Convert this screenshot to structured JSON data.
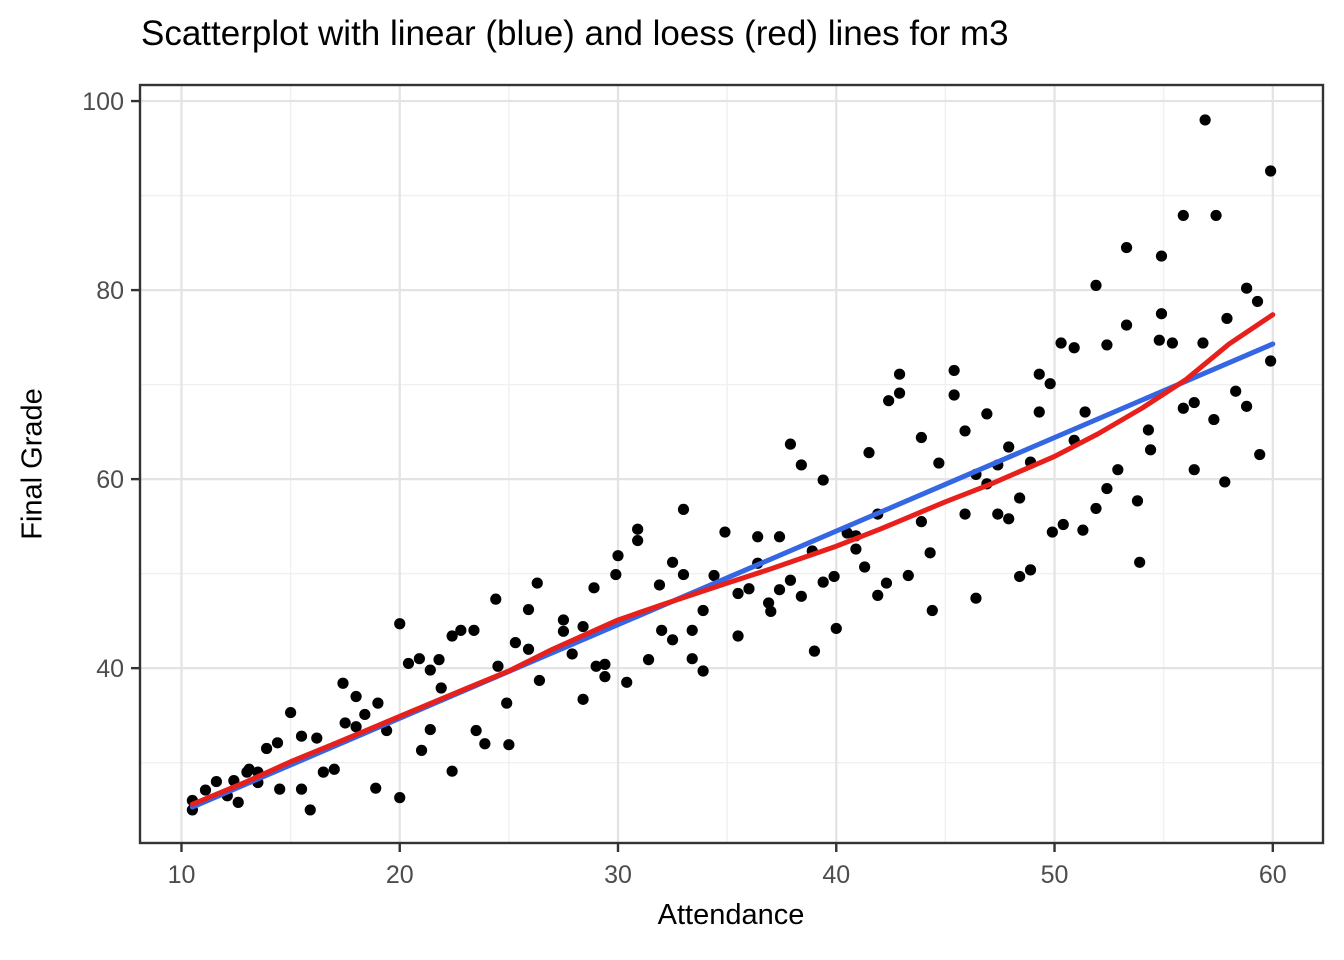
{
  "page": {
    "background": "#ffffff"
  },
  "chart_data": {
    "type": "scatter",
    "title": "Scatterplot with linear (blue) and loess (red) lines for m3",
    "xlabel": "Attendance",
    "ylabel": "Final Grade",
    "xlim": [
      8.1,
      62.3
    ],
    "ylim": [
      21.5,
      101.7
    ],
    "x_major_ticks": [
      10,
      20,
      30,
      40,
      50,
      60
    ],
    "x_minor_ticks": [
      15,
      25,
      35,
      45,
      55
    ],
    "y_major_ticks": [
      40,
      60,
      80,
      100
    ],
    "y_minor_ticks": [
      30,
      50,
      70,
      90
    ],
    "grid": "on",
    "legend": "none",
    "theme": {
      "panel_background": "#ffffff",
      "panel_border": "#333333",
      "grid_major": "#e3e3e3",
      "grid_minor": "#f0f0f0",
      "tick_color": "#333333",
      "tick_label_color": "#4d4d4d",
      "point_color": "#000000"
    },
    "points": [
      [
        10.5,
        26.0
      ],
      [
        10.5,
        25.0
      ],
      [
        11.1,
        27.1
      ],
      [
        11.6,
        28.0
      ],
      [
        12.1,
        26.5
      ],
      [
        12.6,
        25.8
      ],
      [
        12.4,
        28.1
      ],
      [
        13.0,
        29.0
      ],
      [
        13.1,
        29.3
      ],
      [
        13.5,
        29.0
      ],
      [
        13.5,
        27.9
      ],
      [
        13.9,
        31.5
      ],
      [
        14.4,
        32.1
      ],
      [
        14.5,
        27.2
      ],
      [
        15.0,
        35.3
      ],
      [
        15.5,
        32.8
      ],
      [
        15.5,
        27.2
      ],
      [
        15.9,
        25.0
      ],
      [
        16.2,
        32.6
      ],
      [
        16.5,
        29.0
      ],
      [
        17.0,
        29.3
      ],
      [
        17.4,
        38.4
      ],
      [
        18.0,
        37.0
      ],
      [
        17.5,
        34.2
      ],
      [
        18.0,
        33.8
      ],
      [
        18.4,
        35.1
      ],
      [
        19.0,
        36.3
      ],
      [
        18.9,
        27.3
      ],
      [
        19.4,
        33.4
      ],
      [
        20.0,
        44.7
      ],
      [
        20.0,
        26.3
      ],
      [
        20.4,
        40.5
      ],
      [
        20.9,
        41.0
      ],
      [
        21.0,
        31.3
      ],
      [
        21.4,
        39.8
      ],
      [
        21.4,
        33.5
      ],
      [
        21.8,
        40.9
      ],
      [
        21.9,
        37.9
      ],
      [
        22.4,
        43.4
      ],
      [
        22.4,
        29.1
      ],
      [
        22.8,
        44.0
      ],
      [
        23.4,
        44.0
      ],
      [
        23.5,
        33.4
      ],
      [
        23.9,
        32.0
      ],
      [
        24.4,
        47.3
      ],
      [
        24.5,
        40.2
      ],
      [
        24.9,
        36.3
      ],
      [
        25.0,
        31.9
      ],
      [
        25.3,
        42.7
      ],
      [
        25.9,
        46.2
      ],
      [
        25.9,
        42.0
      ],
      [
        26.3,
        49.0
      ],
      [
        26.4,
        38.7
      ],
      [
        27.5,
        45.1
      ],
      [
        27.5,
        43.9
      ],
      [
        27.9,
        41.5
      ],
      [
        28.4,
        44.4
      ],
      [
        28.4,
        36.7
      ],
      [
        28.9,
        48.5
      ],
      [
        29.0,
        40.2
      ],
      [
        29.4,
        40.4
      ],
      [
        29.4,
        39.1
      ],
      [
        29.9,
        49.9
      ],
      [
        30.4,
        38.5
      ],
      [
        31.4,
        40.9
      ],
      [
        31.9,
        48.8
      ],
      [
        32.0,
        44.0
      ],
      [
        32.5,
        43.0
      ],
      [
        33.0,
        49.9
      ],
      [
        33.4,
        44.0
      ],
      [
        33.4,
        41.0
      ],
      [
        33.9,
        46.1
      ],
      [
        33.9,
        39.7
      ],
      [
        34.4,
        49.8
      ],
      [
        35.5,
        47.9
      ],
      [
        35.5,
        43.4
      ],
      [
        36.0,
        48.4
      ],
      [
        36.9,
        46.9
      ],
      [
        37.0,
        46.0
      ],
      [
        37.4,
        48.3
      ],
      [
        37.9,
        49.3
      ],
      [
        38.4,
        47.6
      ],
      [
        39.0,
        41.8
      ],
      [
        39.4,
        49.1
      ],
      [
        39.9,
        49.7
      ],
      [
        40.0,
        44.2
      ],
      [
        41.3,
        50.7
      ],
      [
        41.9,
        47.7
      ],
      [
        42.3,
        49.0
      ],
      [
        43.3,
        49.8
      ],
      [
        44.4,
        46.1
      ],
      [
        30.0,
        51.9
      ],
      [
        30.9,
        54.7
      ],
      [
        30.9,
        53.5
      ],
      [
        32.5,
        51.2
      ],
      [
        33.0,
        56.8
      ],
      [
        34.9,
        54.4
      ],
      [
        36.4,
        53.9
      ],
      [
        36.4,
        51.1
      ],
      [
        37.4,
        53.9
      ],
      [
        37.9,
        63.7
      ],
      [
        38.4,
        61.5
      ],
      [
        39.4,
        59.9
      ],
      [
        38.9,
        52.4
      ],
      [
        40.5,
        54.3
      ],
      [
        40.9,
        54.0
      ],
      [
        40.9,
        52.6
      ],
      [
        41.5,
        62.8
      ],
      [
        41.9,
        56.3
      ],
      [
        42.4,
        68.3
      ],
      [
        42.9,
        69.1
      ],
      [
        42.9,
        71.1
      ],
      [
        43.9,
        64.4
      ],
      [
        43.9,
        55.5
      ],
      [
        44.3,
        52.2
      ],
      [
        44.7,
        61.7
      ],
      [
        46.4,
        47.4
      ],
      [
        48.4,
        49.7
      ],
      [
        48.9,
        50.4
      ],
      [
        53.9,
        51.2
      ],
      [
        45.4,
        71.5
      ],
      [
        45.4,
        68.9
      ],
      [
        45.9,
        65.1
      ],
      [
        46.9,
        66.9
      ],
      [
        46.4,
        60.5
      ],
      [
        46.9,
        59.5
      ],
      [
        47.4,
        61.5
      ],
      [
        47.9,
        63.4
      ],
      [
        48.4,
        58.0
      ],
      [
        48.9,
        61.8
      ],
      [
        49.3,
        71.1
      ],
      [
        49.8,
        70.1
      ],
      [
        49.3,
        67.1
      ],
      [
        45.9,
        56.3
      ],
      [
        47.4,
        56.3
      ],
      [
        47.9,
        55.8
      ],
      [
        49.9,
        54.4
      ],
      [
        50.4,
        55.2
      ],
      [
        51.3,
        54.6
      ],
      [
        50.3,
        74.4
      ],
      [
        50.9,
        73.9
      ],
      [
        52.4,
        74.2
      ],
      [
        51.4,
        67.1
      ],
      [
        50.9,
        64.1
      ],
      [
        51.9,
        56.9
      ],
      [
        52.4,
        59.0
      ],
      [
        52.9,
        61.0
      ],
      [
        53.8,
        57.7
      ],
      [
        54.3,
        65.2
      ],
      [
        54.4,
        63.1
      ],
      [
        54.8,
        74.7
      ],
      [
        55.4,
        74.4
      ],
      [
        55.9,
        67.5
      ],
      [
        56.4,
        68.1
      ],
      [
        56.8,
        74.4
      ],
      [
        56.4,
        61.0
      ],
      [
        57.3,
        66.3
      ],
      [
        57.8,
        59.7
      ],
      [
        58.3,
        69.3
      ],
      [
        58.8,
        67.7
      ],
      [
        59.4,
        62.6
      ],
      [
        59.9,
        72.5
      ],
      [
        56.9,
        98.0
      ],
      [
        59.9,
        92.6
      ],
      [
        55.9,
        87.9
      ],
      [
        57.4,
        87.9
      ],
      [
        53.3,
        84.5
      ],
      [
        54.9,
        83.6
      ],
      [
        51.9,
        80.5
      ],
      [
        58.8,
        80.2
      ],
      [
        59.3,
        78.8
      ],
      [
        54.9,
        77.5
      ],
      [
        57.9,
        77.0
      ],
      [
        53.3,
        76.3
      ]
    ],
    "series": [
      {
        "name": "linear fit",
        "color": "#3566E3",
        "points": [
          [
            10.5,
            25.3
          ],
          [
            60,
            74.3
          ]
        ]
      },
      {
        "name": "loess fit",
        "color": "#E8201C",
        "points": [
          [
            10.5,
            25.6
          ],
          [
            13,
            28.0
          ],
          [
            15,
            30.1
          ],
          [
            17,
            32.0
          ],
          [
            20,
            34.9
          ],
          [
            23,
            37.8
          ],
          [
            25,
            39.7
          ],
          [
            27,
            42.0
          ],
          [
            30,
            45.1
          ],
          [
            32,
            46.7
          ],
          [
            35,
            49.0
          ],
          [
            37,
            50.5
          ],
          [
            40,
            52.9
          ],
          [
            42,
            54.7
          ],
          [
            45,
            57.6
          ],
          [
            47,
            59.4
          ],
          [
            50,
            62.4
          ],
          [
            52,
            64.8
          ],
          [
            54,
            67.5
          ],
          [
            56,
            70.5
          ],
          [
            58,
            74.3
          ],
          [
            60,
            77.4
          ]
        ]
      }
    ]
  }
}
